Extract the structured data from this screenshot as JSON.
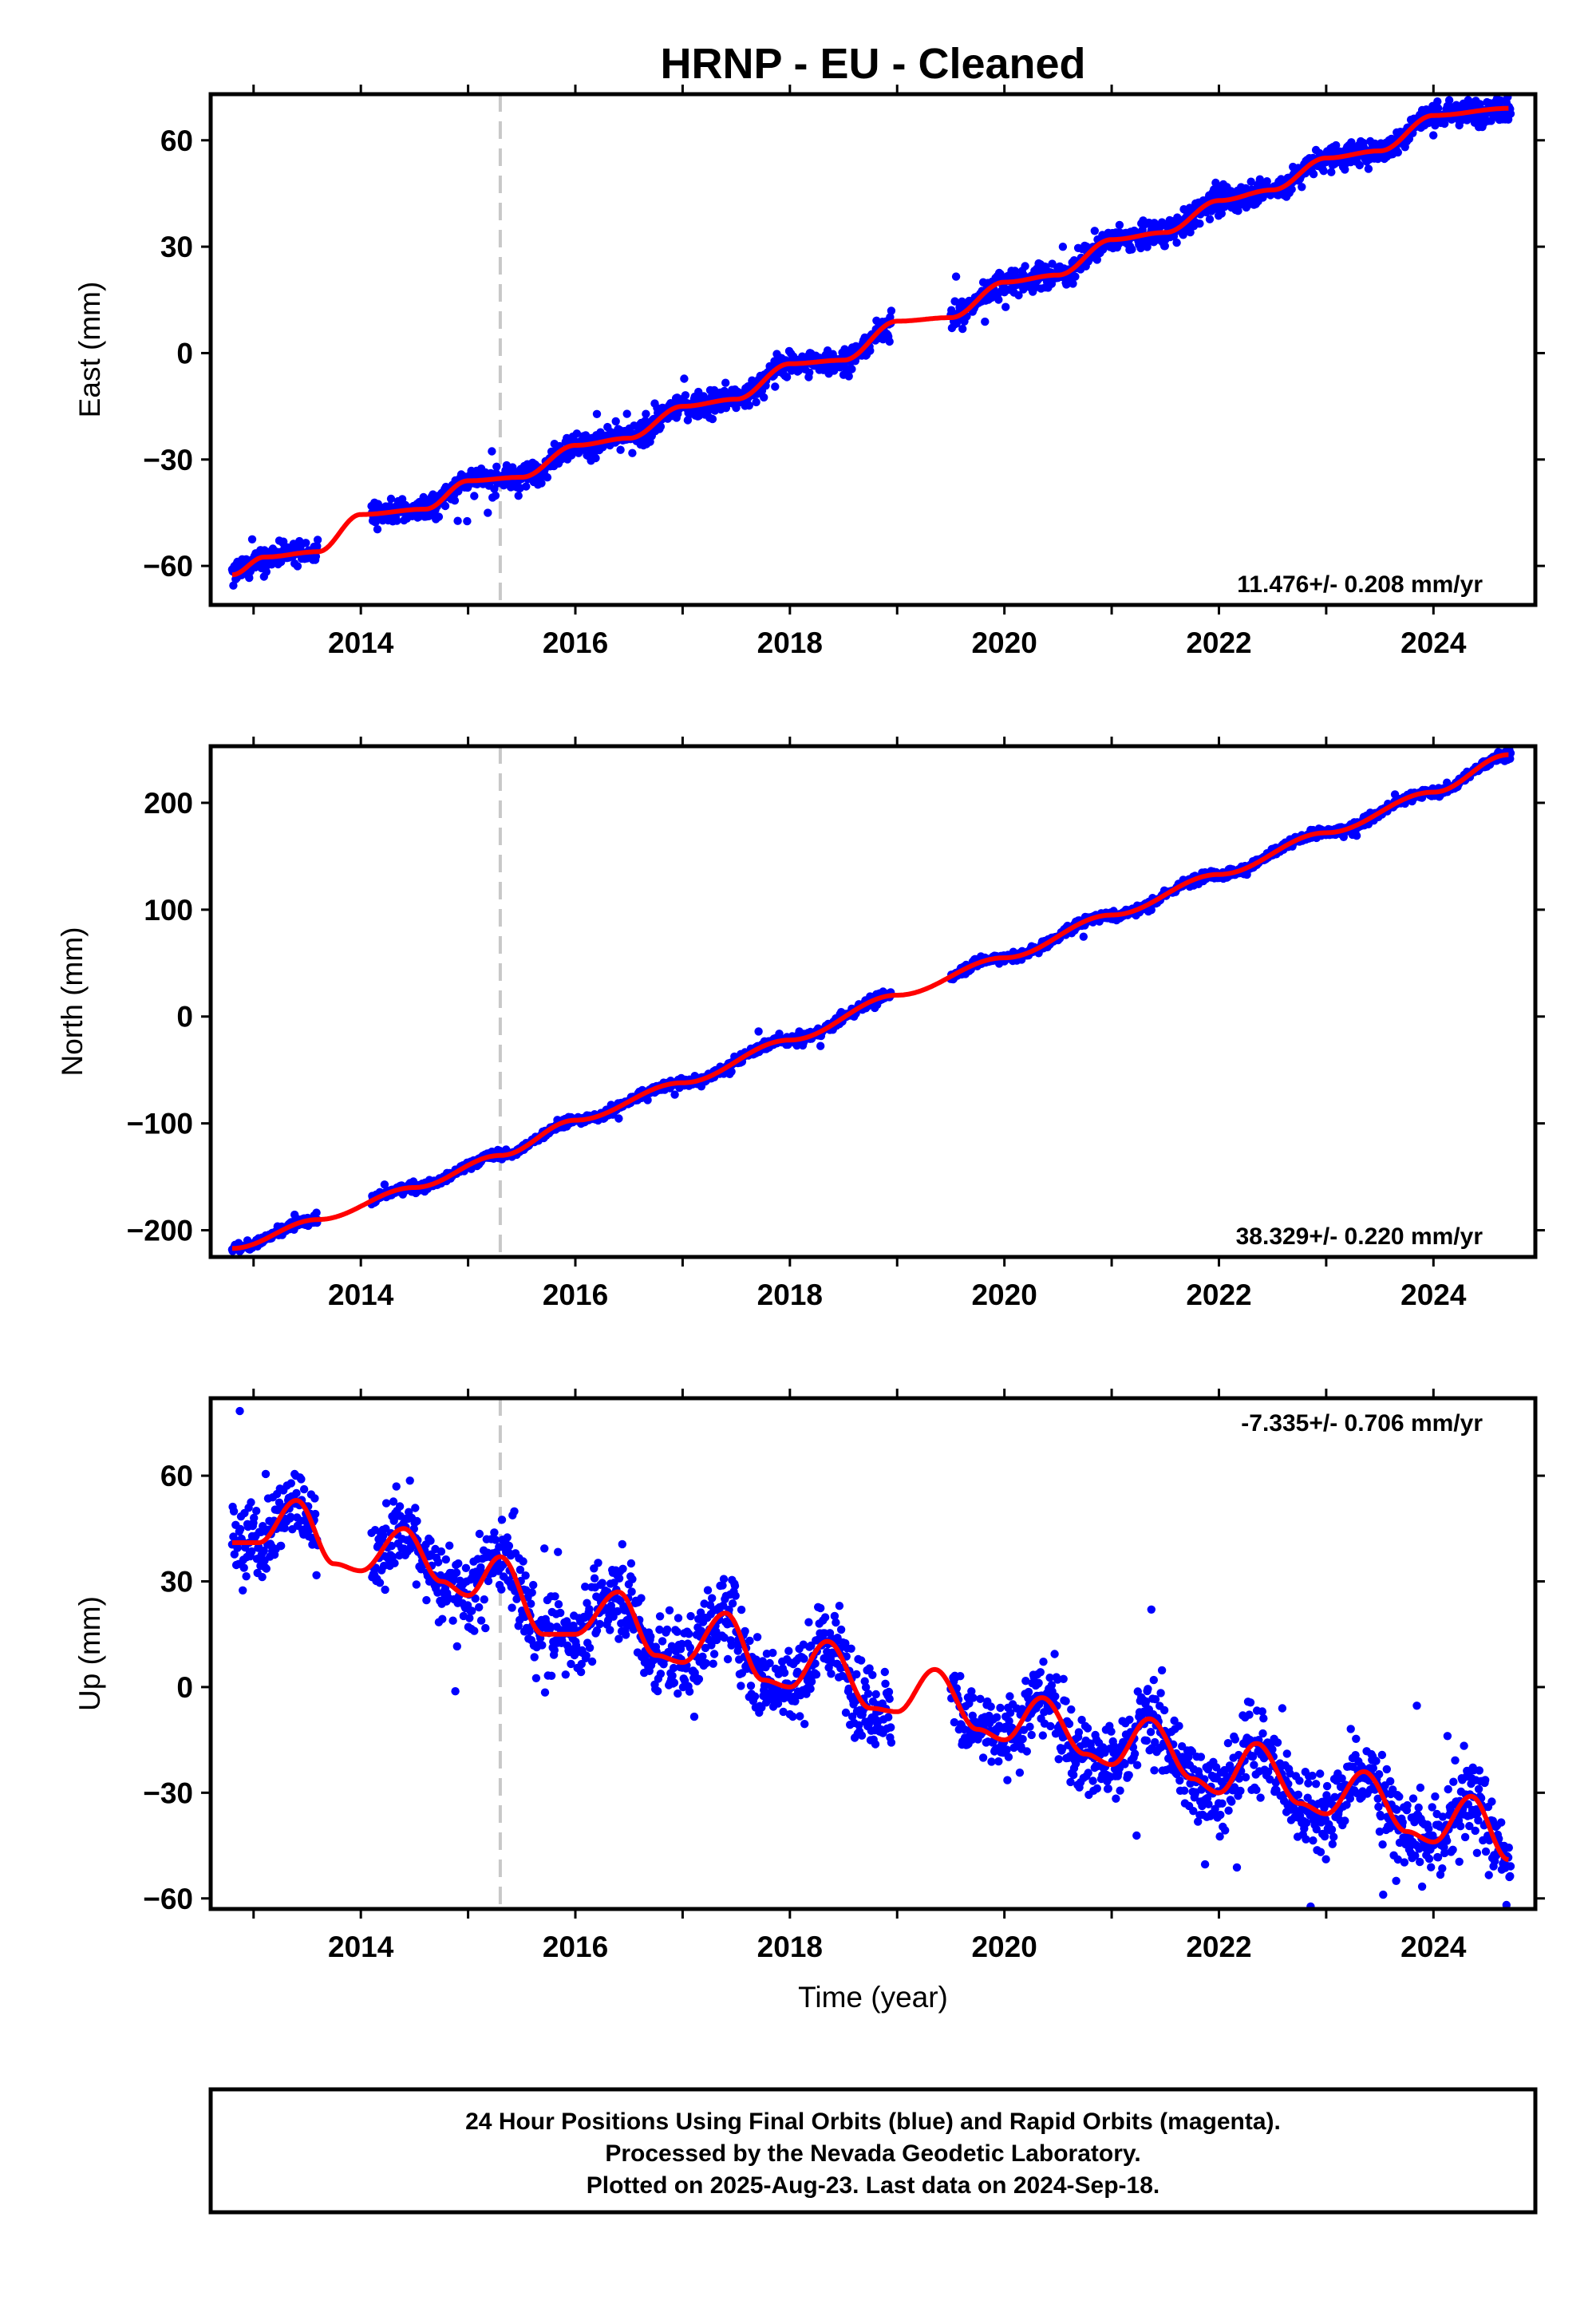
{
  "title": "HRNP  - EU - Cleaned",
  "colors": {
    "data_points": "#0000ff",
    "model_curve": "#ff0000",
    "event_line": "#c8c8c8",
    "frame": "#000000"
  },
  "chart_data": [
    {
      "type": "scatter",
      "ylabel": "East (mm)",
      "xlabel": "",
      "xlim": [
        2012.6,
        2024.95
      ],
      "ylim": [
        -71,
        73
      ],
      "yticks": [
        -60,
        -30,
        0,
        30,
        60
      ],
      "xticks": [
        2014,
        2016,
        2018,
        2020,
        2022,
        2024
      ],
      "rate_label": "11.476+/- 0.208 mm/yr",
      "event_line_x": 2015.3,
      "series": [
        {
          "data_segments": [
            [
              2012.8,
              2013.6
            ],
            [
              2014.1,
              2018.95
            ],
            [
              2019.5,
              2024.72
            ]
          ],
          "model_points": [
            [
              2012.8,
              -62.5
            ],
            [
              2013.1,
              -57.5
            ],
            [
              2013.6,
              -56
            ],
            [
              2014.0,
              -45.5
            ],
            [
              2014.6,
              -44
            ],
            [
              2015.0,
              -36
            ],
            [
              2015.5,
              -35
            ],
            [
              2016.0,
              -26
            ],
            [
              2016.5,
              -24
            ],
            [
              2017.0,
              -15
            ],
            [
              2017.5,
              -13
            ],
            [
              2018.0,
              -3
            ],
            [
              2018.5,
              -2
            ],
            [
              2019.0,
              9
            ],
            [
              2019.5,
              10
            ],
            [
              2020.0,
              20
            ],
            [
              2020.5,
              22
            ],
            [
              2021.0,
              32
            ],
            [
              2021.5,
              34
            ],
            [
              2022.0,
              43
            ],
            [
              2022.5,
              46
            ],
            [
              2023.0,
              55
            ],
            [
              2023.5,
              57
            ],
            [
              2024.0,
              67
            ],
            [
              2024.7,
              69
            ]
          ],
          "scatter_sd": 2.5
        }
      ]
    },
    {
      "type": "scatter",
      "ylabel": "North (mm)",
      "xlabel": "",
      "xlim": [
        2012.6,
        2024.95
      ],
      "ylim": [
        -225,
        253
      ],
      "yticks": [
        -200,
        -100,
        0,
        100,
        200
      ],
      "xticks": [
        2014,
        2016,
        2018,
        2020,
        2022,
        2024
      ],
      "rate_label": "38.329+/- 0.220 mm/yr",
      "event_line_x": 2015.3,
      "series": [
        {
          "data_segments": [
            [
              2012.8,
              2013.6
            ],
            [
              2014.1,
              2018.95
            ],
            [
              2019.5,
              2024.72
            ]
          ],
          "model_points": [
            [
              2012.8,
              -217
            ],
            [
              2013.6,
              -190
            ],
            [
              2014.5,
              -160
            ],
            [
              2015.3,
              -130
            ],
            [
              2016.0,
              -97
            ],
            [
              2017.0,
              -62
            ],
            [
              2018.0,
              -22
            ],
            [
              2019.0,
              20
            ],
            [
              2020.0,
              55
            ],
            [
              2021.0,
              95
            ],
            [
              2022.0,
              133
            ],
            [
              2023.0,
              172
            ],
            [
              2024.0,
              210
            ],
            [
              2024.7,
              245
            ]
          ],
          "scatter_sd": 3
        }
      ]
    },
    {
      "type": "scatter",
      "ylabel": "Up (mm)",
      "xlabel": "Time (year)",
      "xlim": [
        2012.6,
        2024.95
      ],
      "ylim": [
        -63,
        82
      ],
      "yticks": [
        -60,
        -30,
        0,
        30,
        60
      ],
      "xticks": [
        2014,
        2016,
        2018,
        2020,
        2022,
        2024
      ],
      "rate_label": "-7.335+/- 0.706 mm/yr",
      "event_line_x": 2015.3,
      "series": [
        {
          "data_segments": [
            [
              2012.8,
              2013.6
            ],
            [
              2014.1,
              2018.95
            ],
            [
              2019.5,
              2024.72
            ]
          ],
          "model_points": [
            [
              2012.8,
              41
            ],
            [
              2013.05,
              41
            ],
            [
              2013.4,
              53
            ],
            [
              2013.75,
              35
            ],
            [
              2014.0,
              33
            ],
            [
              2014.4,
              45
            ],
            [
              2014.75,
              30
            ],
            [
              2015.0,
              26
            ],
            [
              2015.3,
              37
            ],
            [
              2015.7,
              15
            ],
            [
              2016.0,
              15
            ],
            [
              2016.4,
              27
            ],
            [
              2016.75,
              9
            ],
            [
              2017.0,
              7
            ],
            [
              2017.4,
              21
            ],
            [
              2017.75,
              2
            ],
            [
              2018.0,
              0
            ],
            [
              2018.35,
              13
            ],
            [
              2018.75,
              -6
            ],
            [
              2019.0,
              -7
            ],
            [
              2019.35,
              5
            ],
            [
              2019.75,
              -12
            ],
            [
              2020.0,
              -15
            ],
            [
              2020.35,
              -3
            ],
            [
              2020.75,
              -19
            ],
            [
              2021.0,
              -22
            ],
            [
              2021.35,
              -9
            ],
            [
              2021.75,
              -26
            ],
            [
              2022.0,
              -30
            ],
            [
              2022.35,
              -16
            ],
            [
              2022.75,
              -33
            ],
            [
              2023.0,
              -36
            ],
            [
              2023.35,
              -24
            ],
            [
              2023.75,
              -41
            ],
            [
              2024.0,
              -44
            ],
            [
              2024.35,
              -31
            ],
            [
              2024.7,
              -49
            ]
          ],
          "scatter_sd": 8
        }
      ]
    }
  ],
  "footer": {
    "line1": "24 Hour Positions Using Final Orbits (blue) and Rapid Orbits (magenta).",
    "line2": "Processed by the Nevada Geodetic Laboratory.",
    "line3": "Plotted on 2025-Aug-23. Last data on 2024-Sep-18."
  }
}
